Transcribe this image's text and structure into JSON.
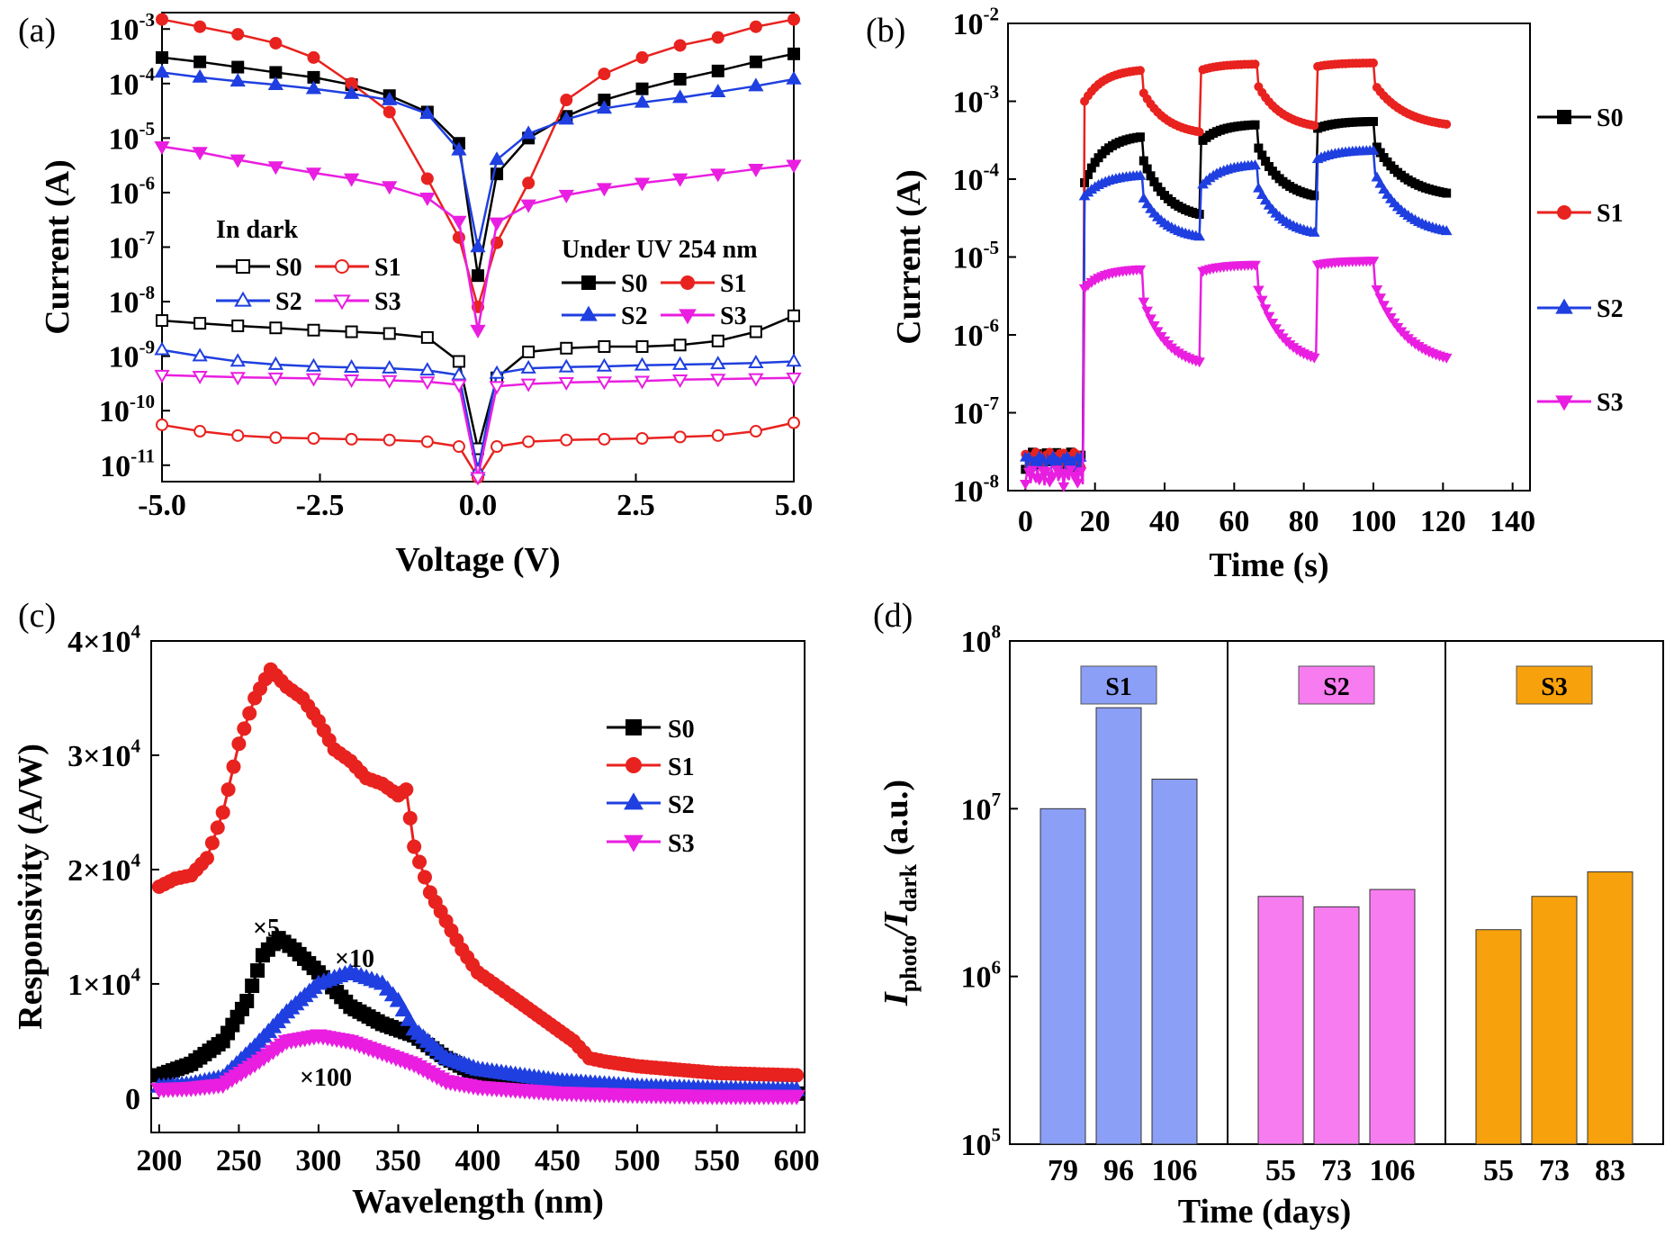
{
  "panels": {
    "a": "(a)",
    "b": "(b)",
    "c": "(c)",
    "d": "(d)"
  },
  "chart_data": [
    {
      "type": "line",
      "panel": "(a)",
      "xlabel": "Voltage (V)",
      "ylabel": "Current (A)",
      "xlim": [
        -5,
        5
      ],
      "ylim": [
        5e-12,
        0.002
      ],
      "yscale": "log",
      "xticks": [
        "-5.0",
        "-2.5",
        "0.0",
        "2.5",
        "5.0"
      ],
      "yticks": [
        {
          "b": "10",
          "e": "-3"
        },
        {
          "b": "10",
          "e": "-4"
        },
        {
          "b": "10",
          "e": "-5"
        },
        {
          "b": "10",
          "e": "-6"
        },
        {
          "b": "10",
          "e": "-7"
        },
        {
          "b": "10",
          "e": "-8"
        },
        {
          "b": "10",
          "e": "-9"
        },
        {
          "b": "10",
          "e": "-10"
        },
        {
          "b": "10",
          "e": "-11"
        }
      ],
      "legend_dark_title": "In dark",
      "legend_uv_title": "Under UV 254 nm",
      "series": [
        {
          "name": "S0",
          "group": "dark",
          "color": "#000000",
          "marker": "square",
          "filled": false,
          "x": [
            -5,
            -4.4,
            -3.8,
            -3.2,
            -2.6,
            -2,
            -1.4,
            -0.8,
            -0.3,
            0,
            0.3,
            0.8,
            1.4,
            2,
            2.6,
            3.2,
            3.8,
            4.4,
            5
          ],
          "y": [
            4.5e-09,
            4e-09,
            3.6e-09,
            3.3e-09,
            3e-09,
            2.8e-09,
            2.6e-09,
            2.2e-09,
            8e-10,
            2e-11,
            4e-10,
            1.2e-09,
            1.4e-09,
            1.5e-09,
            1.5e-09,
            1.6e-09,
            1.9e-09,
            2.8e-09,
            5.5e-09
          ]
        },
        {
          "name": "S1",
          "group": "dark",
          "color": "#e8221f",
          "marker": "circle",
          "filled": false,
          "x": [
            -5,
            -4.4,
            -3.8,
            -3.2,
            -2.6,
            -2,
            -1.4,
            -0.8,
            -0.3,
            0,
            0.3,
            0.8,
            1.4,
            2,
            2.6,
            3.2,
            3.8,
            4.4,
            5
          ],
          "y": [
            5.5e-11,
            4.2e-11,
            3.5e-11,
            3.2e-11,
            3.1e-11,
            3e-11,
            2.9e-11,
            2.7e-11,
            2.2e-11,
            6e-12,
            2.2e-11,
            2.7e-11,
            2.9e-11,
            3e-11,
            3.1e-11,
            3.3e-11,
            3.5e-11,
            4.2e-11,
            6e-11
          ]
        },
        {
          "name": "S2",
          "group": "dark",
          "color": "#1f3fe0",
          "marker": "triangle-up",
          "filled": false,
          "x": [
            -5,
            -4.4,
            -3.8,
            -3.2,
            -2.6,
            -2,
            -1.4,
            -0.8,
            -0.3,
            0,
            0.3,
            0.8,
            1.4,
            2,
            2.6,
            3.2,
            3.8,
            4.4,
            5
          ],
          "y": [
            1.3e-09,
            1e-09,
            8e-10,
            7e-10,
            6.5e-10,
            6.2e-10,
            6e-10,
            5.5e-10,
            4.5e-10,
            8e-12,
            4.8e-10,
            6e-10,
            6.3e-10,
            6.5e-10,
            6.8e-10,
            7e-10,
            7.2e-10,
            7.5e-10,
            8e-10
          ]
        },
        {
          "name": "S3",
          "group": "dark",
          "color": "#e91ee0",
          "marker": "triangle-down",
          "filled": false,
          "x": [
            -5,
            -4.4,
            -3.8,
            -3.2,
            -2.6,
            -2,
            -1.4,
            -0.8,
            -0.3,
            0,
            0.3,
            0.8,
            1.4,
            2,
            2.6,
            3.2,
            3.8,
            4.4,
            5
          ],
          "y": [
            4.5e-10,
            4.3e-10,
            4.1e-10,
            4e-10,
            3.9e-10,
            3.7e-10,
            3.6e-10,
            3.4e-10,
            3e-10,
            6e-12,
            2.8e-10,
            3.1e-10,
            3.3e-10,
            3.4e-10,
            3.5e-10,
            3.7e-10,
            3.8e-10,
            3.9e-10,
            4e-10
          ]
        },
        {
          "name": "S0",
          "group": "uv",
          "color": "#000000",
          "marker": "square",
          "filled": true,
          "x": [
            -5,
            -4.4,
            -3.8,
            -3.2,
            -2.6,
            -2,
            -1.4,
            -0.8,
            -0.3,
            0,
            0.3,
            0.8,
            1.4,
            2,
            2.6,
            3.2,
            3.8,
            4.4,
            5
          ],
          "y": [
            0.0003,
            0.00025,
            0.0002,
            0.00016,
            0.00013,
            9.5e-05,
            6e-05,
            3e-05,
            8e-06,
            3e-08,
            2.2e-06,
            1e-05,
            2.5e-05,
            5e-05,
            8e-05,
            0.00012,
            0.00017,
            0.00025,
            0.00035
          ]
        },
        {
          "name": "S1",
          "group": "uv",
          "color": "#e8221f",
          "marker": "circle",
          "filled": true,
          "x": [
            -5,
            -4.4,
            -3.8,
            -3.2,
            -2.6,
            -2,
            -1.4,
            -0.8,
            -0.3,
            0,
            0.3,
            0.8,
            1.4,
            2,
            2.6,
            3.2,
            3.8,
            4.4,
            5
          ],
          "y": [
            0.0015,
            0.0011,
            0.0008,
            0.00055,
            0.0003,
            0.0001,
            3e-05,
            1.8e-06,
            1.5e-07,
            8e-09,
            1.2e-07,
            1.5e-06,
            5e-05,
            0.00015,
            0.0003,
            0.0005,
            0.0007,
            0.0011,
            0.0015
          ]
        },
        {
          "name": "S2",
          "group": "uv",
          "color": "#1f3fe0",
          "marker": "triangle-up",
          "filled": true,
          "x": [
            -5,
            -4.4,
            -3.8,
            -3.2,
            -2.6,
            -2,
            -1.4,
            -0.8,
            -0.3,
            0,
            0.3,
            0.8,
            1.4,
            2,
            2.6,
            3.2,
            3.8,
            4.4,
            5
          ],
          "y": [
            0.00016,
            0.00013,
            0.00011,
            9.5e-05,
            8e-05,
            6.5e-05,
            5e-05,
            2.8e-05,
            6e-06,
            1e-07,
            4e-06,
            1.2e-05,
            2.2e-05,
            3.5e-05,
            4.5e-05,
            5.5e-05,
            7e-05,
            9e-05,
            0.00012
          ]
        },
        {
          "name": "S3",
          "group": "uv",
          "color": "#e91ee0",
          "marker": "triangle-down",
          "filled": true,
          "x": [
            -5,
            -4.4,
            -3.8,
            -3.2,
            -2.6,
            -2,
            -1.4,
            -0.8,
            -0.3,
            0,
            0.3,
            0.8,
            1.4,
            2,
            2.6,
            3.2,
            3.8,
            4.4,
            5
          ],
          "y": [
            7e-06,
            5.5e-06,
            4e-06,
            3e-06,
            2.3e-06,
            1.8e-06,
            1.3e-06,
            8e-07,
            3e-07,
            3e-09,
            2.8e-07,
            6e-07,
            9e-07,
            1.2e-06,
            1.5e-06,
            1.8e-06,
            2.2e-06,
            2.7e-06,
            3.2e-06
          ]
        }
      ]
    },
    {
      "type": "line",
      "panel": "(b)",
      "xlabel": "Time (s)",
      "ylabel": "Current (A)",
      "xlim": [
        -5,
        145
      ],
      "ylim": [
        1e-08,
        0.01
      ],
      "yscale": "log",
      "xticks": [
        "0",
        "20",
        "40",
        "60",
        "80",
        "100",
        "120",
        "140"
      ],
      "yticks": [
        {
          "b": "10",
          "e": "-2"
        },
        {
          "b": "10",
          "e": "-3"
        },
        {
          "b": "10",
          "e": "-4"
        },
        {
          "b": "10",
          "e": "-5"
        },
        {
          "b": "10",
          "e": "-6"
        },
        {
          "b": "10",
          "e": "-7"
        },
        {
          "b": "10",
          "e": "-8"
        }
      ],
      "legend": [
        "S0",
        "S1",
        "S2",
        "S3"
      ],
      "series": [
        {
          "name": "S0",
          "color": "#000000",
          "marker": "square",
          "dark": 2.5e-08,
          "periods": [
            {
              "t0": 17,
              "t1": 33.5,
              "on_start": 9e-05,
              "on_end": 0.00035,
              "off_end": 3.5e-05
            },
            {
              "t0": 50.5,
              "t1": 66.5,
              "on_start": 0.0003,
              "on_end": 0.0005,
              "off_end": 6e-05
            },
            {
              "t0": 84,
              "t1": 100,
              "on_start": 0.00045,
              "on_end": 0.00055,
              "off_end": 6.5e-05
            }
          ]
        },
        {
          "name": "S1",
          "color": "#e8221f",
          "marker": "circle",
          "dark": 2.5e-08,
          "periods": [
            {
              "t0": 17,
              "t1": 33.5,
              "on_start": 0.001,
              "on_end": 0.0025,
              "off_end": 0.0004
            },
            {
              "t0": 50.5,
              "t1": 66.5,
              "on_start": 0.0025,
              "on_end": 0.003,
              "off_end": 0.00048
            },
            {
              "t0": 84,
              "t1": 100,
              "on_start": 0.0028,
              "on_end": 0.0031,
              "off_end": 0.0005
            }
          ]
        },
        {
          "name": "S2",
          "color": "#1f3fe0",
          "marker": "triangle-up",
          "dark": 2.2e-08,
          "periods": [
            {
              "t0": 17,
              "t1": 33.5,
              "on_start": 6e-05,
              "on_end": 0.00011,
              "off_end": 1.8e-05
            },
            {
              "t0": 50.5,
              "t1": 66.5,
              "on_start": 8e-05,
              "on_end": 0.00015,
              "off_end": 2e-05
            },
            {
              "t0": 84,
              "t1": 100,
              "on_start": 0.00018,
              "on_end": 0.00023,
              "off_end": 2.1e-05
            }
          ]
        },
        {
          "name": "S3",
          "color": "#e91ee0",
          "marker": "triangle-down",
          "dark": 1.5e-08,
          "periods": [
            {
              "t0": 17,
              "t1": 33.5,
              "on_start": 4e-06,
              "on_end": 7e-06,
              "off_end": 4.5e-07
            },
            {
              "t0": 50.5,
              "t1": 66.5,
              "on_start": 6.5e-06,
              "on_end": 8e-06,
              "off_end": 5e-07
            },
            {
              "t0": 84,
              "t1": 100,
              "on_start": 8e-06,
              "on_end": 9e-06,
              "off_end": 5e-07
            }
          ]
        }
      ]
    },
    {
      "type": "line",
      "panel": "(c)",
      "xlabel": "Wavelength (nm)",
      "ylabel": "Responsivity (A/W)",
      "xlim": [
        195,
        605
      ],
      "ylim": [
        -3000,
        40000
      ],
      "xticks": [
        "200",
        "250",
        "300",
        "350",
        "400",
        "450",
        "500",
        "550",
        "600"
      ],
      "yticks": [
        {
          "b": "4×10",
          "e": "4"
        },
        {
          "b": "3×10",
          "e": "4"
        },
        {
          "b": "2×10",
          "e": "4"
        },
        {
          "b": "1×10",
          "e": "4"
        },
        {
          "b": "0",
          "e": ""
        }
      ],
      "annotations": [
        "×5",
        "×10",
        "×100"
      ],
      "series": [
        {
          "name": "S0",
          "color": "#000000",
          "marker": "square",
          "x": [
            200,
            220,
            240,
            255,
            265,
            275,
            285,
            300,
            320,
            340,
            360,
            380,
            400,
            420,
            450,
            500,
            550,
            600
          ],
          "y": [
            2000,
            3000,
            5000,
            8500,
            12500,
            14000,
            13000,
            11000,
            8000,
            6500,
            5500,
            3500,
            2000,
            1200,
            800,
            600,
            500,
            400
          ]
        },
        {
          "name": "S1",
          "color": "#e8221f",
          "marker": "circle",
          "x": [
            200,
            210,
            220,
            230,
            240,
            250,
            260,
            270,
            280,
            290,
            300,
            310,
            320,
            330,
            340,
            350,
            355,
            360,
            370,
            380,
            390,
            400,
            410,
            420,
            440,
            460,
            470,
            480,
            500,
            550,
            600
          ],
          "y": [
            18500,
            19200,
            19500,
            21000,
            25000,
            31000,
            35000,
            37500,
            36000,
            35000,
            33000,
            30500,
            29500,
            28000,
            27500,
            26500,
            27000,
            22000,
            18000,
            15500,
            13000,
            11000,
            10000,
            9000,
            7000,
            5000,
            3500,
            3200,
            2800,
            2200,
            2000
          ]
        },
        {
          "name": "S2",
          "color": "#1f3fe0",
          "marker": "triangle-up",
          "x": [
            200,
            220,
            240,
            260,
            280,
            300,
            310,
            320,
            330,
            340,
            350,
            360,
            380,
            400,
            450,
            500,
            550,
            600
          ],
          "y": [
            1000,
            1200,
            1800,
            4500,
            7500,
            10000,
            10500,
            11000,
            10500,
            10000,
            8500,
            6000,
            3500,
            2500,
            1500,
            1000,
            800,
            700
          ]
        },
        {
          "name": "S3",
          "color": "#e91ee0",
          "marker": "triangle-down",
          "x": [
            200,
            220,
            240,
            260,
            280,
            300,
            320,
            340,
            360,
            380,
            400,
            450,
            500,
            550,
            600
          ],
          "y": [
            800,
            900,
            1200,
            3000,
            5000,
            5500,
            5000,
            4000,
            3000,
            1500,
            1000,
            500,
            300,
            200,
            200
          ]
        }
      ]
    },
    {
      "type": "bar",
      "panel": "(d)",
      "xlabel": "Time (days)",
      "ylabel_main": "I",
      "ylabel_sub1": "photo",
      "ylabel_slash": "/I",
      "ylabel_sub2": "dark",
      "ylabel_unit": " (a.u.)",
      "yscale": "log",
      "ylim": [
        100000.0,
        100000000.0
      ],
      "yticks": [
        {
          "b": "10",
          "e": "8"
        },
        {
          "b": "10",
          "e": "7"
        },
        {
          "b": "10",
          "e": "6"
        },
        {
          "b": "10",
          "e": "5"
        }
      ],
      "groups": [
        {
          "name": "S1",
          "color": "#8c9ff7",
          "label_color": "#8c9ff7",
          "categories": [
            "79",
            "96",
            "106"
          ],
          "values": [
            10000000.0,
            40000000.0,
            15000000.0
          ]
        },
        {
          "name": "S2",
          "color": "#f77cf0",
          "label_color": "#f77cf0",
          "categories": [
            "55",
            "73",
            "106"
          ],
          "values": [
            3000000.0,
            2600000.0,
            3300000.0
          ]
        },
        {
          "name": "S3",
          "color": "#f7a10c",
          "label_color": "#f7a10c",
          "categories": [
            "55",
            "73",
            "83"
          ],
          "values": [
            1900000.0,
            3000000.0,
            4200000.0
          ]
        }
      ]
    }
  ]
}
